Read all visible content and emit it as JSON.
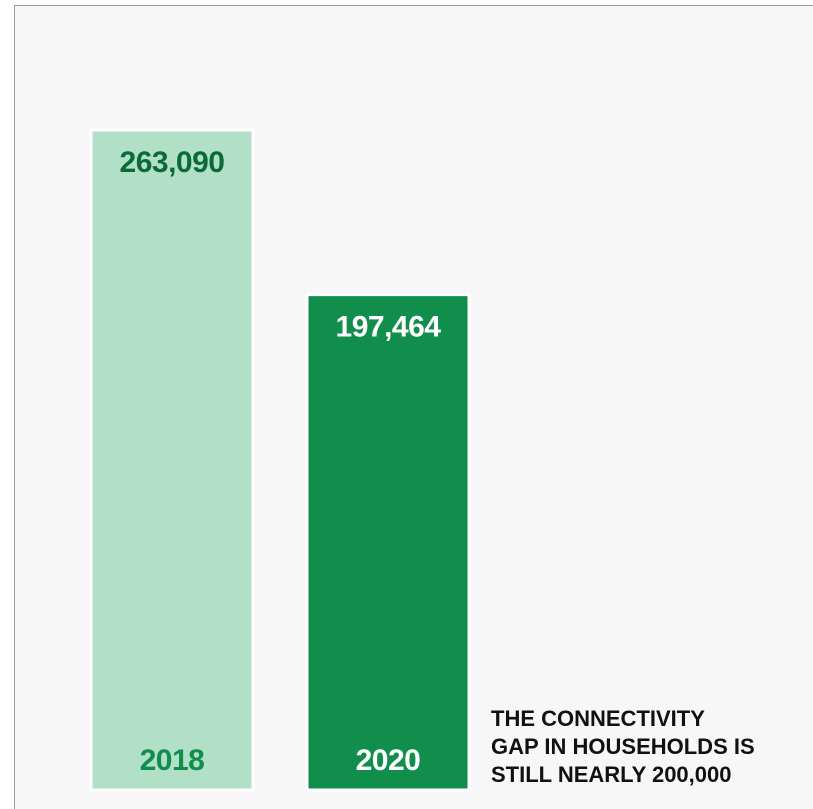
{
  "chart_data": {
    "type": "bar",
    "categories": [
      "2018",
      "2020"
    ],
    "values": [
      263090,
      197464
    ],
    "value_labels": [
      "263,090",
      "197,464"
    ],
    "ylim": [
      0,
      263090
    ],
    "grid": false,
    "legend": "none",
    "bar_colors": [
      "#b1dfc8",
      "#118e4b"
    ],
    "value_label_colors": [
      "#0b6b38",
      "#ffffff"
    ],
    "category_label_colors": [
      "#118e4b",
      "#ffffff"
    ],
    "background": "#f7f7f7"
  },
  "caption": {
    "lines": [
      "THE CONNECTIVITY",
      "GAP IN HOUSEHOLDS IS",
      "STILL NEARLY 200,000"
    ]
  }
}
